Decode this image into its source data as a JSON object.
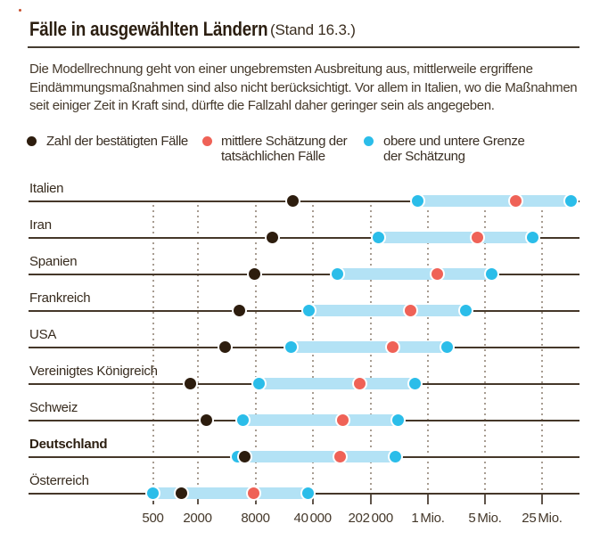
{
  "title": {
    "main": "Fälle in ausgewählten Ländern",
    "suffix": "(Stand 16.3.)"
  },
  "description_lines": [
    "Die Modellrechnung geht von einer ungebremsten Ausbreitung aus, mittlerweile ergriffene",
    "Eindämmungsmaßnahmen sind also nicht berücksichtigt. Vor allem in Italien, wo die Maßnahmen",
    "seit einiger Zeit in Kraft sind, dürfte die Fallzahl daher geringer sein als angegeben."
  ],
  "legend": [
    {
      "id": "confirmed",
      "color": "#2d1d0e",
      "label_lines": [
        "Zahl der bestätigten Fälle"
      ]
    },
    {
      "id": "mean-estimate",
      "color": "#ef6257",
      "label_lines": [
        "mittlere Schätzung der",
        "tatsächlichen Fälle"
      ]
    },
    {
      "id": "bounds",
      "color": "#2bbde9",
      "label_lines": [
        "obere und untere Grenze",
        "der Schätzung"
      ]
    }
  ],
  "chart_data": {
    "type": "dot-range",
    "x_axis": {
      "scale": "log",
      "tick_values": [
        500,
        2000,
        8000,
        40000,
        202000,
        1000000,
        5000000,
        25000000
      ],
      "tick_labels": [
        "500",
        "2000",
        "8000",
        "40 000",
        "202 000",
        "1 Mio.",
        "5 Mio.",
        "25 Mio."
      ]
    },
    "colors": {
      "confirmed": "#2d1d0e",
      "mean": "#ef6257",
      "bound": "#2bbde9",
      "band": "#b3e2f5"
    },
    "countries": [
      {
        "name": "Italien",
        "bold": false,
        "confirmed": 23000,
        "estimate_low": 750000,
        "estimate_mean": 12000000,
        "estimate_high": 56000000
      },
      {
        "name": "Iran",
        "bold": false,
        "confirmed": 13000,
        "estimate_low": 250000,
        "estimate_mean": 4000000,
        "estimate_high": 19000000
      },
      {
        "name": "Spanien",
        "bold": false,
        "confirmed": 7900,
        "estimate_low": 80000,
        "estimate_mean": 1300000,
        "estimate_high": 6100000
      },
      {
        "name": "Frankreich",
        "bold": false,
        "confirmed": 5400,
        "estimate_low": 36000,
        "estimate_mean": 620000,
        "estimate_high": 2900000
      },
      {
        "name": "USA",
        "bold": false,
        "confirmed": 3900,
        "estimate_low": 22000,
        "estimate_mean": 370000,
        "estimate_high": 1700000
      },
      {
        "name": "Vereinigtes Königreich",
        "bold": false,
        "confirmed": 1600,
        "estimate_low": 8900,
        "estimate_mean": 150000,
        "estimate_high": 690000
      },
      {
        "name": "Schweiz",
        "bold": false,
        "confirmed": 2500,
        "estimate_low": 5900,
        "estimate_mean": 94000,
        "estimate_high": 440000
      },
      {
        "name": "Deutschland",
        "bold": true,
        "confirmed": 6200,
        "estimate_low": 5200,
        "estimate_mean": 87000,
        "estimate_high": 400000
      },
      {
        "name": "Österreich",
        "bold": false,
        "confirmed": 1200,
        "estimate_low": 500,
        "estimate_mean": 7600,
        "estimate_high": 35000
      }
    ]
  }
}
